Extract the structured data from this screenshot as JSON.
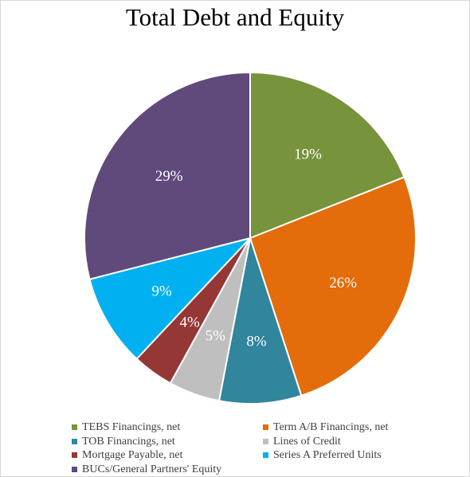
{
  "chart_data": {
    "type": "pie",
    "title": "Total Debt and Equity",
    "slices": [
      {
        "name": "TEBS Financings, net",
        "value": 19,
        "label": "19%",
        "color": "#77933c"
      },
      {
        "name": "Term A/B Financings, net",
        "value": 26,
        "label": "26%",
        "color": "#e46c0a"
      },
      {
        "name": "TOB Financings, net",
        "value": 8,
        "label": "8%",
        "color": "#31859c"
      },
      {
        "name": "Lines of Credit",
        "value": 5,
        "label": "5%",
        "color": "#bfbfbf"
      },
      {
        "name": "Mortgage Payable, net",
        "value": 4,
        "label": "4%",
        "color": "#953735"
      },
      {
        "name": "Series A Preferred Units",
        "value": 9,
        "label": "9%",
        "color": "#00b0f0"
      },
      {
        "name": "BUCs/General Partners' Equity",
        "value": 29,
        "label": "29%",
        "color": "#604a7b"
      }
    ],
    "legend_position": "bottom"
  }
}
